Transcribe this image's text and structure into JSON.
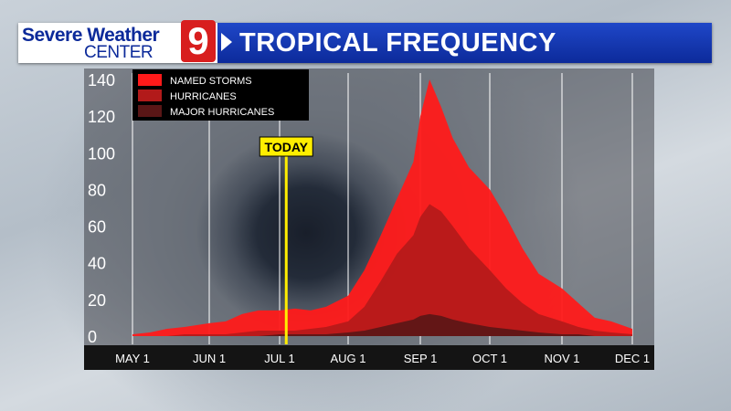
{
  "brand": {
    "line1": "Severe Weather",
    "line2": "CENTER",
    "logo_number": "9",
    "title": "TROPICAL FREQUENCY",
    "colors": {
      "header_blue": "#0c2a9a",
      "logo_red": "#d81e1e"
    }
  },
  "chart_data": {
    "type": "area",
    "title": "TROPICAL FREQUENCY",
    "xlabel": "",
    "ylabel": "",
    "x_ticks": [
      "MAY 1",
      "JUN 1",
      "JUL 1",
      "AUG 1",
      "SEP 1",
      "OCT 1",
      "NOV 1",
      "DEC 1"
    ],
    "y_ticks": [
      0,
      20,
      40,
      60,
      80,
      100,
      120,
      140
    ],
    "ylim": [
      0,
      140
    ],
    "grid": true,
    "legend": "top-left",
    "annotation": {
      "label": "TODAY",
      "x": "Jul 4"
    },
    "x": [
      "May 1",
      "May 8",
      "May 15",
      "May 22",
      "Jun 1",
      "Jun 8",
      "Jun 15",
      "Jun 22",
      "Jul 1",
      "Jul 8",
      "Jul 15",
      "Jul 22",
      "Aug 1",
      "Aug 8",
      "Aug 15",
      "Aug 22",
      "Aug 29",
      "Sep 1",
      "Sep 5",
      "Sep 10",
      "Sep 15",
      "Sep 22",
      "Oct 1",
      "Oct 8",
      "Oct 15",
      "Oct 22",
      "Nov 1",
      "Nov 8",
      "Nov 15",
      "Nov 22",
      "Dec 1"
    ],
    "series": [
      {
        "name": "NAMED STORMS",
        "color": "#ff1a1a",
        "values": [
          1,
          2,
          4,
          5,
          7,
          8,
          12,
          14,
          14,
          15,
          14,
          16,
          22,
          36,
          55,
          75,
          95,
          120,
          140,
          125,
          108,
          92,
          80,
          65,
          48,
          34,
          26,
          18,
          10,
          8,
          4
        ]
      },
      {
        "name": "HURRICANES",
        "color": "#b21a1a",
        "values": [
          0,
          0,
          0,
          1,
          1,
          1,
          2,
          3,
          3,
          3,
          4,
          5,
          8,
          16,
          30,
          45,
          55,
          65,
          72,
          68,
          60,
          48,
          36,
          26,
          18,
          12,
          8,
          5,
          3,
          2,
          1
        ]
      },
      {
        "name": "MAJOR HURRICANES",
        "color": "#5a1616",
        "values": [
          0,
          0,
          0,
          0,
          0,
          0,
          0,
          0,
          1,
          1,
          1,
          1,
          2,
          3,
          5,
          7,
          9,
          11,
          12,
          11,
          9,
          7,
          5,
          4,
          3,
          2,
          1,
          1,
          0,
          0,
          0
        ]
      }
    ]
  }
}
